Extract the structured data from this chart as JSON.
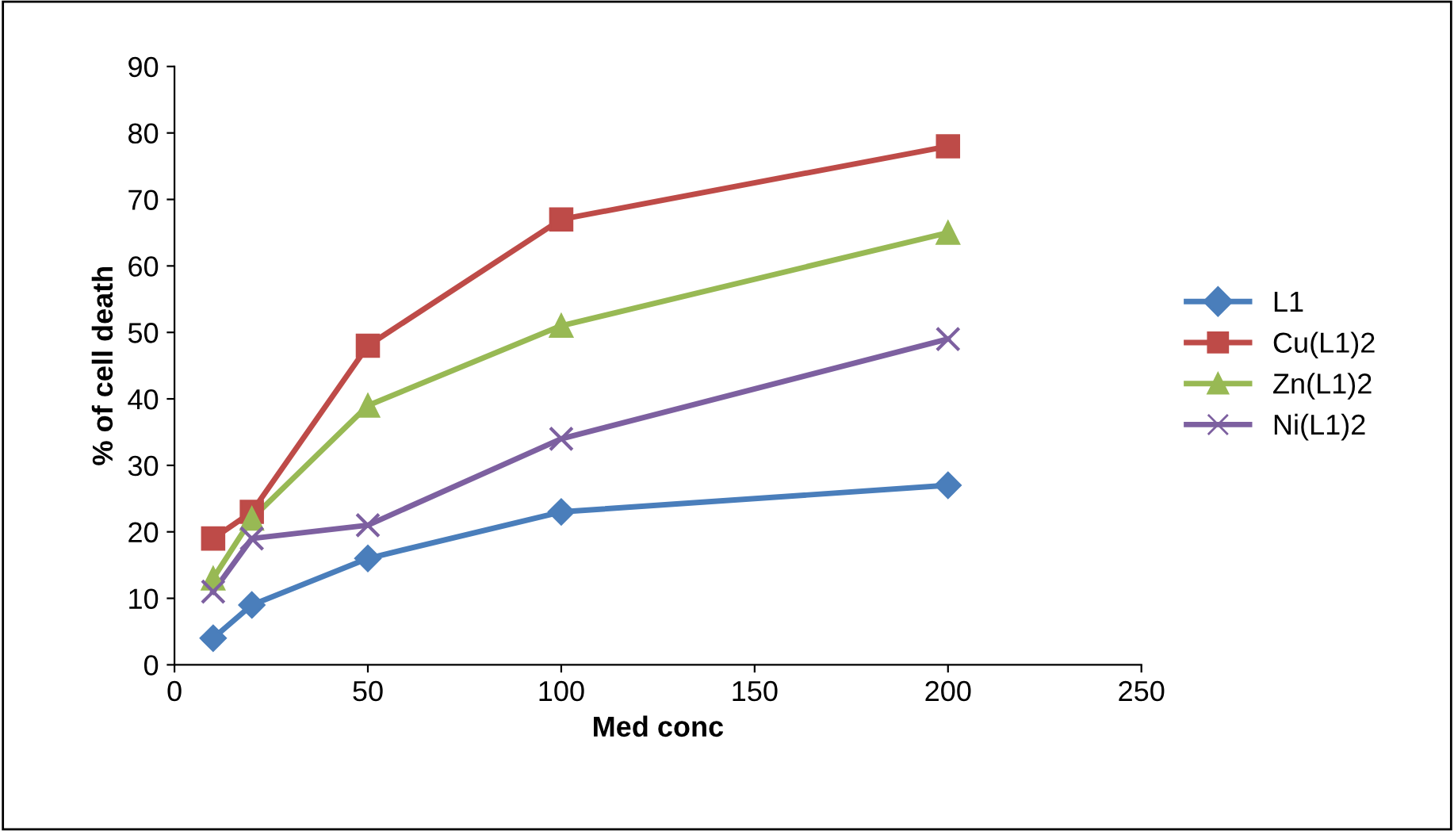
{
  "chart_data": {
    "type": "line",
    "xlabel": "Med conc",
    "ylabel": "% of cell death",
    "x": [
      10,
      20,
      50,
      100,
      200
    ],
    "series": [
      {
        "name": "L1",
        "color": "#4a7ebb",
        "marker": "diamond",
        "values": [
          4,
          9,
          16,
          23,
          27
        ]
      },
      {
        "name": "Cu(L1)2",
        "color": "#be4b48",
        "marker": "square",
        "values": [
          19,
          23,
          48,
          67,
          78
        ]
      },
      {
        "name": "Zn(L1)2",
        "color": "#98b954",
        "marker": "triangle",
        "values": [
          13,
          22,
          39,
          51,
          65
        ]
      },
      {
        "name": "Ni(L1)2",
        "color": "#7d60a0",
        "marker": "cross",
        "values": [
          11,
          19,
          21,
          34,
          49
        ]
      }
    ],
    "xlim": [
      0,
      250
    ],
    "xticks": [
      0,
      50,
      100,
      150,
      200,
      250
    ],
    "ylim": [
      0,
      90
    ],
    "yticks": [
      0,
      10,
      20,
      30,
      40,
      50,
      60,
      70,
      80,
      90
    ],
    "grid": false,
    "legend": "right",
    "line_style": "solid"
  }
}
